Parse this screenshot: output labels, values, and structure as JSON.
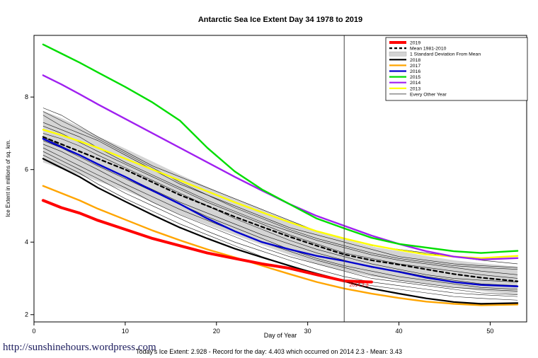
{
  "title": "Antarctic Sea Ice Extent Day 34 1978 to 2019",
  "footer": {
    "link": "http://sunshinehours.wordpress.com",
    "caption": "Today's Ice Extent: 2.928  - Record for the day: 4.403 which occurred on 2014 2.3  - Mean: 3.43"
  },
  "chart_data": {
    "type": "line",
    "title": "Antarctic Sea Ice Extent Day 34 1978 to 2019",
    "xlabel": "Day of Year",
    "ylabel": "Ice Extent in millions of sq. km.",
    "xlim": [
      0,
      54
    ],
    "ylim": [
      1.8,
      9.7
    ],
    "xticks": [
      0,
      10,
      20,
      30,
      40,
      50
    ],
    "yticks": [
      2,
      4,
      6,
      8
    ],
    "grid": false,
    "legend_position": "top-right",
    "day_marker": 34,
    "annotation": {
      "text": "2014 2.3",
      "x": 34.4,
      "y": 2.78,
      "color": "#FF0000"
    },
    "x": [
      1,
      3,
      5,
      7,
      10,
      13,
      16,
      19,
      22,
      25,
      28,
      31,
      34,
      37,
      40,
      43,
      46,
      49,
      53
    ],
    "band": {
      "name": "1 Standard Deviation From Mean",
      "color": "#d4d4d4",
      "upper": [
        7.62,
        7.42,
        7.18,
        6.92,
        6.58,
        6.22,
        5.86,
        5.52,
        5.2,
        4.9,
        4.6,
        4.32,
        4.08,
        3.88,
        3.75,
        3.62,
        3.5,
        3.42,
        3.32
      ],
      "lower": [
        6.2,
        6.02,
        5.85,
        5.68,
        5.42,
        5.1,
        4.76,
        4.48,
        4.2,
        3.92,
        3.65,
        3.4,
        3.2,
        3.05,
        2.95,
        2.85,
        2.75,
        2.65,
        2.55
      ]
    },
    "series": [
      {
        "name": "2013",
        "color": "#FFFF00",
        "width": 2.4,
        "dash": null,
        "values": [
          7.1,
          6.95,
          6.78,
          6.6,
          6.3,
          6.0,
          5.7,
          5.4,
          5.1,
          4.82,
          4.55,
          4.3,
          4.1,
          3.92,
          3.78,
          3.66,
          3.6,
          3.56,
          3.62
        ]
      },
      {
        "name": "2016",
        "color": "#0000CD",
        "width": 2.4,
        "dash": null,
        "values": [
          6.85,
          6.62,
          6.4,
          6.15,
          5.8,
          5.42,
          5.05,
          4.65,
          4.3,
          4.0,
          3.8,
          3.62,
          3.48,
          3.32,
          3.18,
          3.02,
          2.9,
          2.82,
          2.78
        ]
      },
      {
        "name": "2017",
        "color": "#FFA500",
        "width": 2.4,
        "dash": null,
        "values": [
          5.55,
          5.35,
          5.15,
          4.92,
          4.62,
          4.32,
          4.05,
          3.8,
          3.58,
          3.35,
          3.12,
          2.9,
          2.72,
          2.58,
          2.46,
          2.36,
          2.3,
          2.26,
          2.28
        ]
      },
      {
        "name": "2018",
        "color": "#000000",
        "width": 2.2,
        "dash": null,
        "values": [
          6.3,
          6.05,
          5.8,
          5.5,
          5.12,
          4.75,
          4.4,
          4.1,
          3.82,
          3.58,
          3.35,
          3.12,
          2.92,
          2.72,
          2.58,
          2.45,
          2.35,
          2.3,
          2.32
        ]
      },
      {
        "name": "2014",
        "color": "#A020F0",
        "width": 2.4,
        "dash": null,
        "values": [
          8.6,
          8.35,
          8.08,
          7.8,
          7.4,
          7.0,
          6.6,
          6.2,
          5.8,
          5.42,
          5.05,
          4.72,
          4.45,
          4.18,
          3.95,
          3.75,
          3.6,
          3.52,
          3.56
        ]
      },
      {
        "name": "2015",
        "color": "#00DD00",
        "width": 2.4,
        "dash": null,
        "values": [
          9.45,
          9.2,
          8.95,
          8.68,
          8.28,
          7.85,
          7.35,
          6.6,
          5.95,
          5.45,
          5.05,
          4.65,
          4.38,
          4.12,
          3.95,
          3.85,
          3.75,
          3.7,
          3.76
        ]
      },
      {
        "name": "Mean 1981-2010",
        "color": "#000000",
        "width": 2.2,
        "dash": "5 4",
        "values": [
          6.9,
          6.7,
          6.5,
          6.3,
          6.0,
          5.65,
          5.3,
          5.0,
          4.7,
          4.42,
          4.15,
          3.9,
          3.66,
          3.5,
          3.38,
          3.25,
          3.12,
          3.02,
          2.92
        ]
      },
      {
        "name": "2019",
        "color": "#FF0000",
        "width": 4,
        "dash": null,
        "values": [
          5.15,
          4.95,
          4.8,
          4.6,
          4.35,
          4.1,
          3.9,
          3.7,
          3.55,
          3.4,
          3.28,
          3.1,
          2.93,
          2.9,
          null,
          null,
          null,
          null,
          null
        ]
      }
    ],
    "other_years": {
      "name": "Every Other Year",
      "color": "#1a1a1a",
      "width": 0.6,
      "series": [
        [
          7.7,
          7.5,
          7.2,
          6.9,
          6.5,
          6.1,
          5.8,
          5.5,
          5.2,
          4.9,
          4.6,
          4.3,
          4.1,
          3.9,
          3.8,
          3.7,
          3.6,
          3.5,
          3.4
        ],
        [
          7.5,
          7.2,
          7.0,
          6.8,
          6.4,
          6.0,
          5.6,
          5.3,
          5.0,
          4.7,
          4.4,
          4.2,
          4.0,
          3.8,
          3.6,
          3.5,
          3.4,
          3.35,
          3.3
        ],
        [
          7.3,
          7.1,
          6.9,
          6.6,
          6.2,
          5.85,
          5.5,
          5.15,
          4.85,
          4.55,
          4.3,
          4.05,
          3.85,
          3.65,
          3.5,
          3.4,
          3.3,
          3.2,
          3.1
        ],
        [
          7.2,
          7.0,
          6.75,
          6.5,
          6.15,
          5.8,
          5.45,
          5.1,
          4.8,
          4.5,
          4.2,
          3.95,
          3.7,
          3.55,
          3.4,
          3.3,
          3.2,
          3.1,
          3.0
        ],
        [
          7.0,
          6.85,
          6.65,
          6.4,
          6.05,
          5.7,
          5.35,
          5.0,
          4.65,
          4.35,
          4.05,
          3.8,
          3.6,
          3.4,
          3.25,
          3.1,
          3.0,
          2.95,
          2.9
        ],
        [
          6.9,
          6.65,
          6.4,
          6.15,
          5.8,
          5.45,
          5.1,
          4.8,
          4.5,
          4.2,
          3.95,
          3.7,
          3.5,
          3.3,
          3.2,
          3.05,
          2.95,
          2.85,
          2.8
        ],
        [
          6.8,
          6.6,
          6.35,
          6.1,
          5.75,
          5.4,
          5.05,
          4.7,
          4.4,
          4.1,
          3.8,
          3.55,
          3.35,
          3.2,
          3.05,
          2.95,
          2.85,
          2.75,
          2.7
        ],
        [
          6.7,
          6.5,
          6.25,
          6.0,
          5.6,
          5.25,
          4.9,
          4.6,
          4.3,
          4.0,
          3.75,
          3.5,
          3.3,
          3.1,
          2.95,
          2.85,
          2.75,
          2.7,
          2.65
        ],
        [
          6.6,
          6.35,
          6.1,
          5.85,
          5.5,
          5.1,
          4.75,
          4.45,
          4.15,
          3.85,
          3.6,
          3.4,
          3.2,
          3.0,
          2.9,
          2.8,
          2.7,
          2.6,
          2.55
        ],
        [
          6.5,
          6.25,
          6.0,
          5.75,
          5.35,
          5.0,
          4.65,
          4.3,
          4.0,
          3.75,
          3.5,
          3.25,
          3.05,
          2.9,
          2.8,
          2.7,
          2.6,
          2.55,
          2.5
        ],
        [
          6.4,
          6.15,
          5.9,
          5.6,
          5.2,
          4.85,
          4.5,
          4.2,
          3.9,
          3.6,
          3.35,
          3.15,
          2.95,
          2.8,
          2.7,
          2.6,
          2.5,
          2.45,
          2.4
        ],
        [
          7.6,
          7.35,
          7.1,
          6.85,
          6.45,
          6.05,
          5.65,
          5.3,
          4.95,
          4.65,
          4.35,
          4.1,
          3.9,
          3.7,
          3.55,
          3.45,
          3.35,
          3.3,
          3.25
        ]
      ]
    },
    "legend": [
      {
        "label": "2019",
        "color": "#FF0000",
        "sample": "thick"
      },
      {
        "label": "Mean 1981-2010",
        "color": "#000000",
        "sample": "dashed"
      },
      {
        "label": "1 Standard Deviation From Mean",
        "color": "#d4d4d4",
        "sample": "band"
      },
      {
        "label": "2018",
        "color": "#000000",
        "sample": "line"
      },
      {
        "label": "2017",
        "color": "#FFA500",
        "sample": "line"
      },
      {
        "label": "2016",
        "color": "#0000CD",
        "sample": "line"
      },
      {
        "label": "2015",
        "color": "#00DD00",
        "sample": "line"
      },
      {
        "label": "2014",
        "color": "#A020F0",
        "sample": "line"
      },
      {
        "label": "2013",
        "color": "#FFFF00",
        "sample": "line"
      },
      {
        "label": "Every Other Year",
        "color": "#1a1a1a",
        "sample": "thin"
      }
    ]
  }
}
